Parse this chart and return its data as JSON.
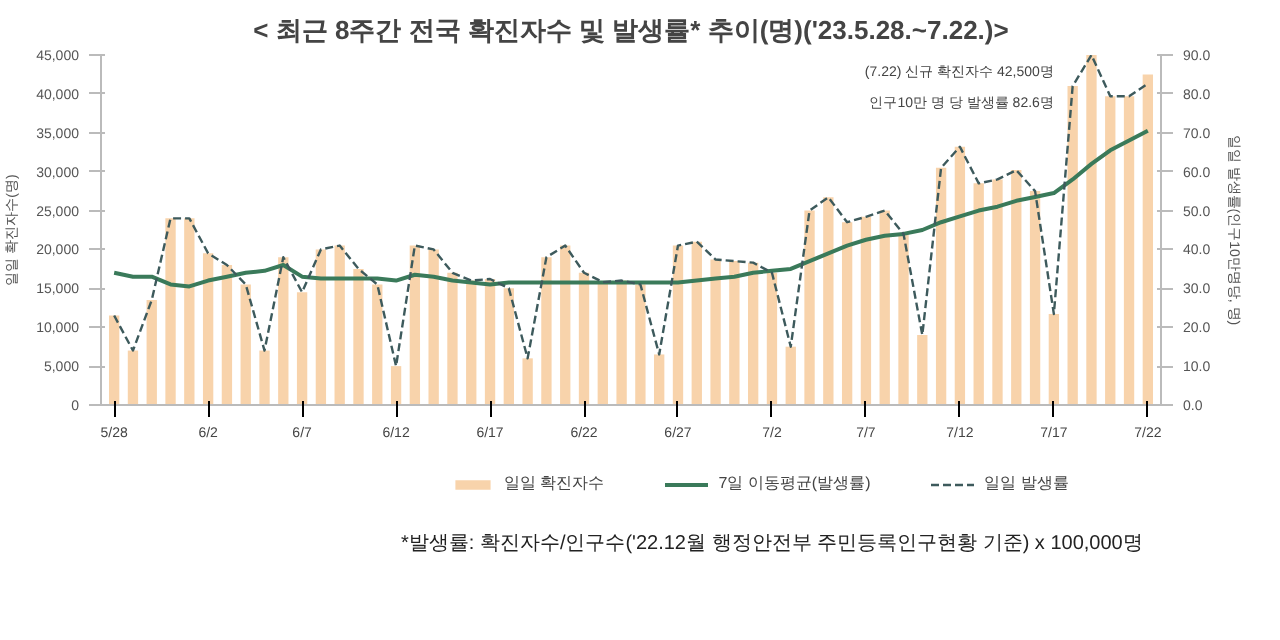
{
  "chart_data": {
    "type": "bar",
    "title": "< 최근 8주간 전국 확진자수 및 발생률* 추이(명)('23.5.28.~7.22.)>",
    "ylabel": "일일 확진자수(명)",
    "y2label": "일일 발생률(인구10만명당, 명)",
    "categories": [
      "5/28",
      null,
      null,
      null,
      null,
      "6/2",
      null,
      null,
      null,
      null,
      "6/7",
      null,
      null,
      null,
      null,
      "6/12",
      null,
      null,
      null,
      null,
      "6/17",
      null,
      null,
      null,
      null,
      "6/22",
      null,
      null,
      null,
      null,
      "6/27",
      null,
      null,
      null,
      null,
      "7/2",
      null,
      null,
      null,
      null,
      "7/7",
      null,
      null,
      null,
      null,
      "7/12",
      null,
      null,
      null,
      null,
      "7/17",
      null,
      null,
      null,
      null,
      "7/22"
    ],
    "series": [
      {
        "name": "일일 확진자수",
        "color": "#f8d3ab",
        "values": [
          11500,
          7000,
          13500,
          24000,
          24000,
          19500,
          18000,
          15500,
          7000,
          19000,
          14500,
          20000,
          20500,
          17500,
          15500,
          5000,
          20500,
          20000,
          17000,
          16000,
          16200,
          15000,
          6000,
          19000,
          20500,
          17000,
          15800,
          16000,
          15500,
          6500,
          20500,
          21000,
          18700,
          18500,
          18300,
          17000,
          7500,
          25000,
          26700,
          23500,
          24200,
          25000,
          22000,
          9000,
          30500,
          33200,
          28500,
          29000,
          30200,
          27500,
          11700,
          41000,
          45000,
          39700,
          39700,
          42500
        ]
      },
      {
        "name": "7일 이동평균(발생률)",
        "type": "line",
        "axis": "y2",
        "color": "#3a7a5a",
        "line_style": "solid",
        "values": [
          34,
          33,
          33,
          31,
          30.5,
          32,
          33,
          34,
          34.5,
          36,
          33,
          32.5,
          32.5,
          32.5,
          32.5,
          32,
          33.5,
          33,
          32,
          31.5,
          31,
          31.5,
          31.5,
          31.5,
          31.5,
          31.5,
          31.5,
          31.5,
          31.5,
          31.5,
          31.5,
          32,
          32.5,
          33,
          34,
          34.5,
          35,
          37,
          39,
          41,
          42.5,
          43.5,
          44,
          45,
          47,
          48.5,
          50,
          51,
          52.5,
          53.5,
          54.5,
          58,
          62,
          65.5,
          68,
          70.5
        ]
      },
      {
        "name": "일일 발생률",
        "type": "line",
        "axis": "y2",
        "color": "#3d5a5c",
        "line_style": "dashed",
        "values": [
          23,
          14,
          27,
          48,
          48,
          39,
          36,
          31,
          14,
          38,
          29,
          40,
          41,
          35,
          31,
          10,
          41,
          40,
          34,
          32,
          32.4,
          30,
          12,
          38,
          41,
          34,
          31.6,
          32,
          31,
          13,
          41,
          42,
          37.4,
          37,
          36.6,
          34,
          15,
          50,
          53.4,
          47,
          48.4,
          50,
          44,
          18,
          61,
          66.4,
          57,
          58,
          60.4,
          55,
          23.4,
          82,
          90,
          79.4,
          79.4,
          82.6
        ]
      }
    ],
    "ylim": [
      0,
      45000
    ],
    "yticks": [
      {
        "value": 0,
        "label": "0"
      },
      {
        "value": 5000,
        "label": "5,000"
      },
      {
        "value": 10000,
        "label": "10,000"
      },
      {
        "value": 15000,
        "label": "15,000"
      },
      {
        "value": 20000,
        "label": "20,000"
      },
      {
        "value": 25000,
        "label": "25,000"
      },
      {
        "value": 30000,
        "label": "30,000"
      },
      {
        "value": 35000,
        "label": "35,000"
      },
      {
        "value": 40000,
        "label": "40,000"
      },
      {
        "value": 45000,
        "label": "45,000"
      }
    ],
    "y2lim": [
      0,
      90
    ],
    "y2ticks": [
      {
        "value": 0,
        "label": "0.0"
      },
      {
        "value": 10,
        "label": "10.0"
      },
      {
        "value": 20,
        "label": "20.0"
      },
      {
        "value": 30,
        "label": "30.0"
      },
      {
        "value": 40,
        "label": "40.0"
      },
      {
        "value": 50,
        "label": "50.0"
      },
      {
        "value": 60,
        "label": "60.0"
      },
      {
        "value": 70,
        "label": "70.0"
      },
      {
        "value": 80,
        "label": "80.0"
      },
      {
        "value": 90,
        "label": "90.0"
      }
    ],
    "annotations": [
      "(7.22) 신규 확진자수 42,500명",
      "인구10만 명 당 발생률 82.6명",
      "*발생률: 확진자수/인구수('22.12월 행정안전부 주민등록인구현황 기준) x 100,000명"
    ],
    "grid": false,
    "legend": "bottom",
    "marker": "none"
  }
}
